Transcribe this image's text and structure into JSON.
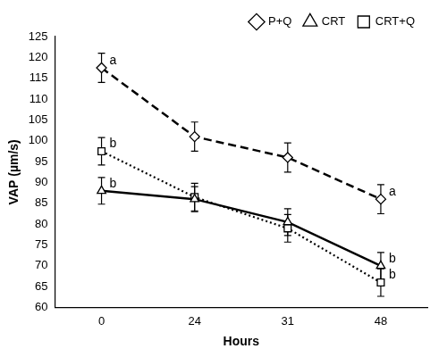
{
  "chart_data": {
    "type": "line",
    "x_label": "Hours",
    "y_label": "VAP (µm/s)",
    "categories": [
      "0",
      "24",
      "31",
      "48"
    ],
    "ylim": [
      60,
      125
    ],
    "yticks": [
      60,
      65,
      70,
      75,
      80,
      85,
      90,
      95,
      100,
      105,
      110,
      115,
      120,
      125
    ],
    "grid": false,
    "legend": "top-right",
    "series": [
      {
        "name": "P+Q",
        "color": "#000000",
        "marker": "diamond",
        "line_style": "dashed",
        "values": [
          117.5,
          101,
          96,
          86
        ],
        "errors": [
          3.5,
          3.5,
          3.5,
          3.5
        ],
        "annotations": [
          "a",
          null,
          null,
          "a"
        ]
      },
      {
        "name": "CRT",
        "color": "#000000",
        "marker": "triangle",
        "line_style": "solid",
        "values": [
          88,
          86,
          80.5,
          70
        ],
        "errors": [
          3.2,
          3,
          3.2,
          3.2
        ],
        "annotations": [
          "b",
          null,
          null,
          "b"
        ]
      },
      {
        "name": "CRT+Q",
        "color": "#000000",
        "marker": "square",
        "line_style": "dotted",
        "values": [
          97.5,
          86.5,
          79,
          66
        ],
        "errors": [
          3.3,
          3.3,
          3.3,
          3.3
        ],
        "annotations": [
          "b",
          null,
          null,
          "b"
        ]
      }
    ]
  }
}
